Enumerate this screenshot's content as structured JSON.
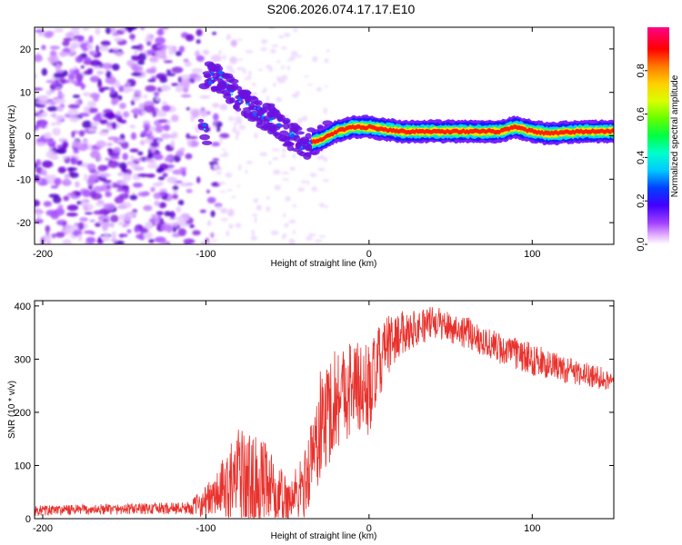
{
  "title": "S206.2026.074.17.17.E10",
  "chart_data": [
    {
      "type": "heatmap",
      "name": "spectrogram",
      "xlabel": "Height of straight line (km)",
      "ylabel": "Frequency (Hz)",
      "xlim": [
        -205,
        150
      ],
      "ylim": [
        -25,
        25
      ],
      "xticks": [
        -200,
        -100,
        0,
        100
      ],
      "yticks": [
        -20,
        -10,
        0,
        10,
        20
      ],
      "colorbar": {
        "label": "Normalized spectral amplitude",
        "range": [
          0,
          1
        ],
        "ticks": [
          0.0,
          0.2,
          0.4,
          0.6,
          0.8
        ],
        "tick_labels": [
          "0.0",
          "0.2",
          "0.4",
          "0.6",
          "0.8"
        ]
      },
      "ridge": [
        {
          "x": -100,
          "y": 14
        },
        {
          "x": -90,
          "y": 13
        },
        {
          "x": -82,
          "y": 9
        },
        {
          "x": -75,
          "y": 7
        },
        {
          "x": -68,
          "y": 5
        },
        {
          "x": -60,
          "y": 4
        },
        {
          "x": -50,
          "y": 1
        },
        {
          "x": -40,
          "y": -2
        },
        {
          "x": -30,
          "y": -1
        },
        {
          "x": -20,
          "y": 1
        },
        {
          "x": -10,
          "y": 2
        },
        {
          "x": 0,
          "y": 2
        },
        {
          "x": 20,
          "y": 1
        },
        {
          "x": 50,
          "y": 1
        },
        {
          "x": 80,
          "y": 1
        },
        {
          "x": 90,
          "y": 2
        },
        {
          "x": 100,
          "y": 1
        },
        {
          "x": 110,
          "y": 0.5
        },
        {
          "x": 130,
          "y": 1
        },
        {
          "x": 150,
          "y": 1
        }
      ],
      "noise_region_x": [
        -205,
        -95
      ]
    },
    {
      "type": "line",
      "name": "snr",
      "xlabel": "Height of straight line (km)",
      "ylabel": "SNR (10 * v/v)",
      "xlim": [
        -205,
        150
      ],
      "ylim": [
        0,
        410
      ],
      "xticks": [
        -200,
        -100,
        0,
        100
      ],
      "yticks": [
        0,
        100,
        200,
        300,
        400
      ],
      "series": [
        {
          "name": "SNR",
          "color": "#e8322d",
          "envelope": [
            {
              "x": -205,
              "mean": 15,
              "spread": 10
            },
            {
              "x": -150,
              "mean": 18,
              "spread": 10
            },
            {
              "x": -110,
              "mean": 20,
              "spread": 12
            },
            {
              "x": -95,
              "mean": 40,
              "spread": 40
            },
            {
              "x": -80,
              "mean": 80,
              "spread": 90
            },
            {
              "x": -65,
              "mean": 60,
              "spread": 90
            },
            {
              "x": -50,
              "mean": 30,
              "spread": 50
            },
            {
              "x": -40,
              "mean": 60,
              "spread": 60
            },
            {
              "x": -30,
              "mean": 170,
              "spread": 110
            },
            {
              "x": -20,
              "mean": 230,
              "spread": 100
            },
            {
              "x": -10,
              "mean": 250,
              "spread": 90
            },
            {
              "x": 0,
              "mean": 240,
              "spread": 90
            },
            {
              "x": 10,
              "mean": 320,
              "spread": 60
            },
            {
              "x": 20,
              "mean": 350,
              "spread": 40
            },
            {
              "x": 40,
              "mean": 370,
              "spread": 30
            },
            {
              "x": 60,
              "mean": 350,
              "spread": 30
            },
            {
              "x": 80,
              "mean": 320,
              "spread": 30
            },
            {
              "x": 100,
              "mean": 300,
              "spread": 30
            },
            {
              "x": 120,
              "mean": 280,
              "spread": 25
            },
            {
              "x": 150,
              "mean": 260,
              "spread": 20
            }
          ]
        }
      ]
    }
  ],
  "colors": {
    "colormap": [
      "#ffffff",
      "#e0b0ff",
      "#8a2be2",
      "#5500cc",
      "#0000ff",
      "#00e5ff",
      "#00ff66",
      "#aaff00",
      "#ffee00",
      "#ff8800",
      "#ff0000",
      "#ff00aa"
    ],
    "line": "#e8322d"
  }
}
